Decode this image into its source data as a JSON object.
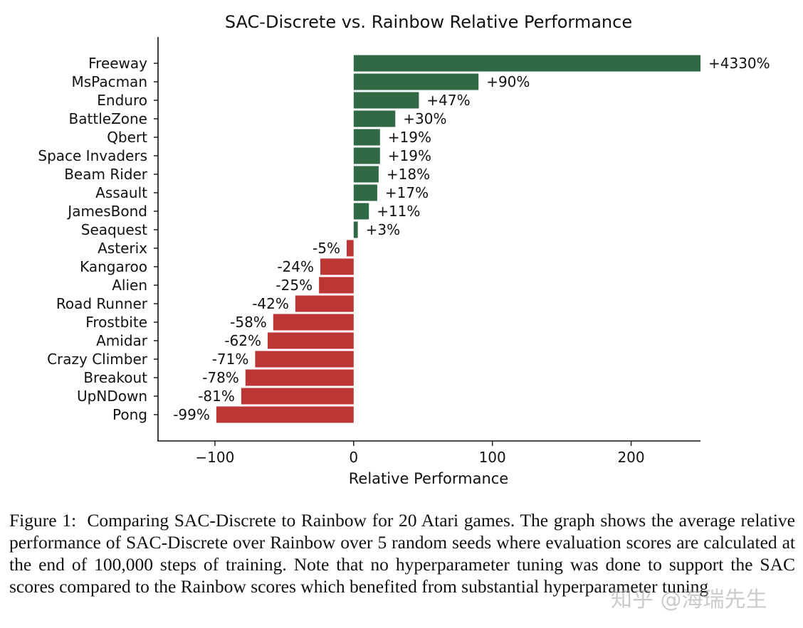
{
  "chart_data": {
    "type": "bar",
    "orientation": "horizontal",
    "title": "SAC-Discrete vs. Rainbow Relative Performance",
    "xlabel": "Relative Performance",
    "ylabel": "",
    "xlim": [
      -141,
      250
    ],
    "xticks": [
      -100,
      0,
      100,
      200
    ],
    "xtick_labels": [
      "−100",
      "0",
      "100",
      "200"
    ],
    "grid": false,
    "categories": [
      "Freeway",
      "MsPacman",
      "Enduro",
      "BattleZone",
      "Qbert",
      "Space Invaders",
      "Beam Rider",
      "Assault",
      "JamesBond",
      "Seaquest",
      "Asterix",
      "Kangaroo",
      "Alien",
      "Road Runner",
      "Frostbite",
      "Amidar",
      "Crazy Climber",
      "Breakout",
      "UpNDown",
      "Pong"
    ],
    "values": [
      4330,
      90,
      47,
      30,
      19,
      19,
      18,
      17,
      11,
      3,
      -5,
      -24,
      -25,
      -42,
      -58,
      -62,
      -71,
      -78,
      -81,
      -99
    ],
    "data_labels": [
      "+4330%",
      "+90%",
      "+47%",
      "+30%",
      "+19%",
      "+19%",
      "+18%",
      "+17%",
      "+11%",
      "+3%",
      "-5%",
      "-24%",
      "-25%",
      "-42%",
      "-58%",
      "-62%",
      "-71%",
      "-78%",
      "-81%",
      "-99%"
    ],
    "colors": {
      "positive": "#2f6a45",
      "negative": "#bd3636"
    }
  },
  "caption": {
    "label": "Figure 1:",
    "text": "Comparing SAC-Discrete to Rainbow for 20 Atari games. The graph shows the average relative performance of SAC-Discrete over Rainbow over 5 random seeds where evaluation scores are calculated at the end of 100,000 steps of training. Note that no hyperparameter tuning was done to support the SAC scores compared to the Rainbow scores which benefited from substantial hyperparameter tuning"
  },
  "watermark": "知乎 @海瑞先生"
}
